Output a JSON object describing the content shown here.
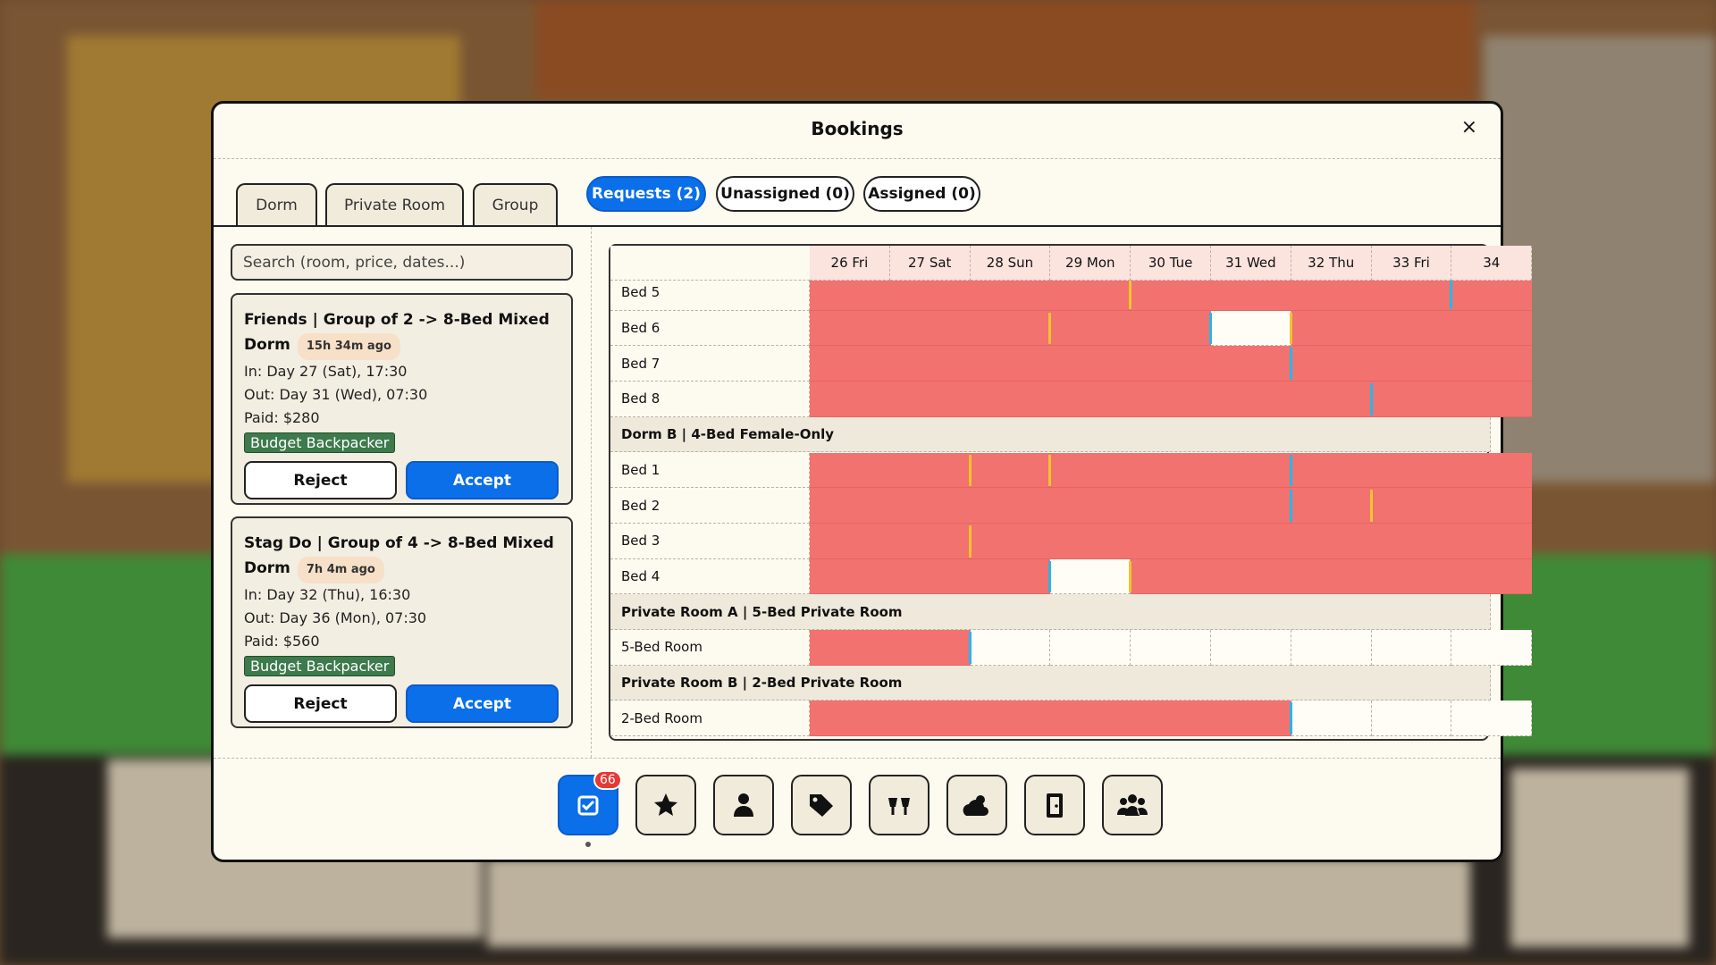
{
  "header": {
    "title": "Bookings",
    "close": "×"
  },
  "room_tabs": [
    "Dorm",
    "Private Room",
    "Group"
  ],
  "request_tabs": [
    "Requests (2)",
    "Unassigned (0)",
    "Assigned (0)"
  ],
  "search": {
    "placeholder": "Search (room, price, dates...)"
  },
  "requests": [
    {
      "title": "Friends | Group of 2 -> 8-Bed Mixed Dorm",
      "age": "15h 34m ago",
      "check_in": "In: Day 27 (Sat), 17:30",
      "check_out": "Out: Day 31 (Wed), 07:30",
      "paid": "Paid: $280",
      "tag": "Budget Backpacker",
      "reject": "Reject",
      "accept": "Accept"
    },
    {
      "title": "Stag Do | Group of 4 -> 8-Bed Mixed Dorm",
      "age": "7h 4m ago",
      "check_in": "In: Day 32 (Thu), 16:30",
      "check_out": "Out: Day 36 (Mon), 07:30",
      "paid": "Paid: $560",
      "tag": "Budget Backpacker",
      "reject": "Reject",
      "accept": "Accept"
    }
  ],
  "calendar": {
    "days": [
      "26 Fri",
      "27 Sat",
      "28 Sun",
      "29 Mon",
      "30 Tue",
      "31 Wed",
      "32 Thu",
      "33 Fri",
      "34"
    ],
    "rows": [
      {
        "label": "Bed 5"
      },
      {
        "label": "Bed 6"
      },
      {
        "label": "Bed 7"
      },
      {
        "label": "Bed 8"
      },
      {
        "label": "Dorm B | 4-Bed Female-Only",
        "group": true
      },
      {
        "label": "Bed 1"
      },
      {
        "label": "Bed 2"
      },
      {
        "label": "Bed 3"
      },
      {
        "label": "Bed 4"
      },
      {
        "label": "Private Room A | 5-Bed Private Room",
        "group": true
      },
      {
        "label": "5-Bed Room"
      },
      {
        "label": "Private Room B | 2-Bed Private Room",
        "group": true
      },
      {
        "label": "2-Bed Room"
      }
    ]
  },
  "nav": {
    "badge": "66"
  }
}
